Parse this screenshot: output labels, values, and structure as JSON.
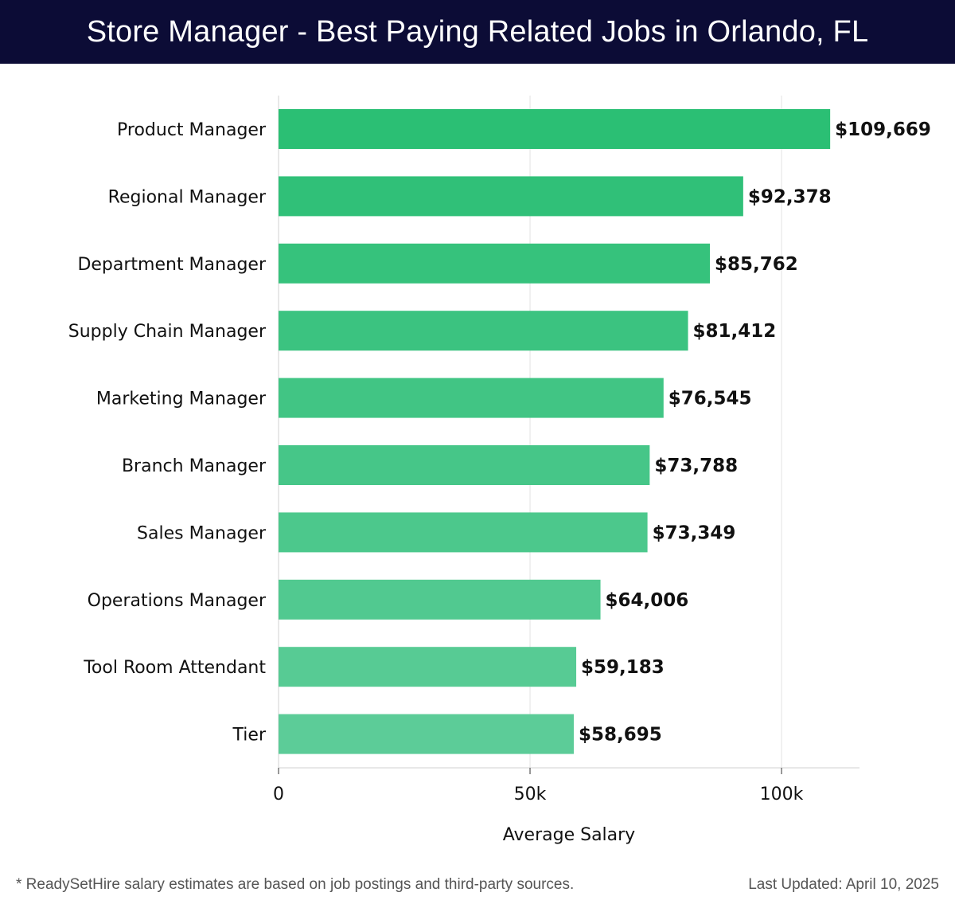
{
  "header": {
    "title": "Store Manager - Best Paying Related Jobs in Orlando, FL"
  },
  "chart_data": {
    "type": "bar",
    "orientation": "horizontal",
    "title": "Store Manager - Best Paying Related Jobs in Orlando, FL",
    "xlabel": "Average Salary",
    "ylabel": "",
    "categories": [
      "Product Manager",
      "Regional Manager",
      "Department Manager",
      "Supply Chain Manager",
      "Marketing Manager",
      "Branch Manager",
      "Sales Manager",
      "Operations Manager",
      "Tool Room Attendant",
      "Tier"
    ],
    "values": [
      109669,
      92378,
      85762,
      81412,
      76545,
      73788,
      73349,
      64006,
      59183,
      58695
    ],
    "value_labels": [
      "$109,669",
      "$92,378",
      "$85,762",
      "$81,412",
      "$76,545",
      "$73,788",
      "$73,349",
      "$64,006",
      "$59,183",
      "$58,695"
    ],
    "xlim": [
      0,
      115500
    ],
    "xticks": [
      0,
      50000,
      100000
    ],
    "xtick_labels": [
      "0",
      "50k",
      "100k"
    ],
    "grid": true,
    "colors": {
      "bar_top": "#2bbf74",
      "bar_bottom": "#5ccc98",
      "grid": "#e3e3e3",
      "axis": "#d0d0d0",
      "text": "#111111"
    }
  },
  "footer": {
    "note": "* ReadySetHire salary estimates are based on job postings and third-party sources.",
    "updated": "Last Updated: April 10, 2025"
  }
}
